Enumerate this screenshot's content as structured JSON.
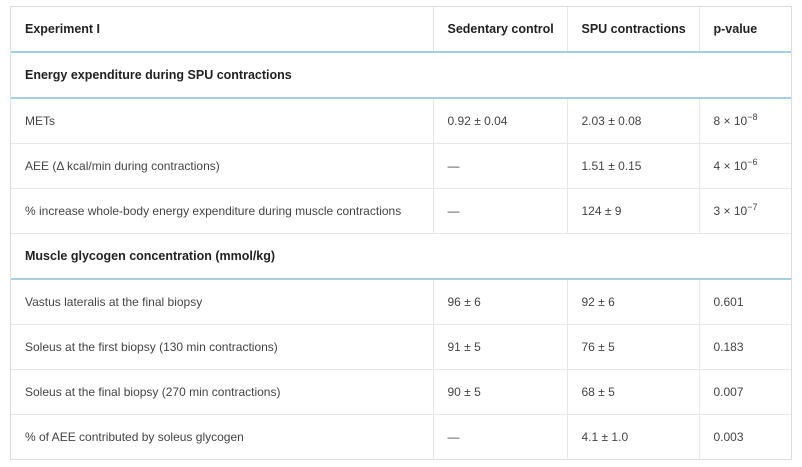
{
  "table": {
    "headers": [
      "Experiment I",
      "Sedentary control",
      "SPU contractions",
      "p-value"
    ],
    "sections": [
      {
        "title": "Energy expenditure during SPU contractions",
        "rows": [
          {
            "label": "METs",
            "sedentary": "0.92 ± 0.04",
            "spu": "2.03 ± 0.08",
            "p_base": "8 × 10",
            "p_exp": "−8"
          },
          {
            "label": "AEE (Δ kcal/min during contractions)",
            "sedentary": "—",
            "spu": "1.51 ± 0.15",
            "p_base": "4 × 10",
            "p_exp": "−6"
          },
          {
            "label": "% increase whole-body energy expenditure during muscle contractions",
            "sedentary": "—",
            "spu": "124 ± 9",
            "p_base": "3 × 10",
            "p_exp": "−7"
          }
        ]
      },
      {
        "title": "Muscle glycogen concentration (mmol/kg)",
        "rows": [
          {
            "label": "Vastus lateralis at the final biopsy",
            "sedentary": "96 ± 6",
            "spu": "92 ± 6",
            "p_base": "0.601",
            "p_exp": ""
          },
          {
            "label": "Soleus at the first biopsy (130 min contractions)",
            "sedentary": "91 ± 5",
            "spu": "76 ± 5",
            "p_base": "0.183",
            "p_exp": ""
          },
          {
            "label": "Soleus at the final biopsy (270 min contractions)",
            "sedentary": "90 ± 5",
            "spu": "68 ± 5",
            "p_base": "0.007",
            "p_exp": ""
          },
          {
            "label": "% of AEE contributed by soleus glycogen",
            "sedentary": "—",
            "spu": "4.1 ± 1.0",
            "p_base": "0.003",
            "p_exp": ""
          }
        ]
      }
    ]
  }
}
